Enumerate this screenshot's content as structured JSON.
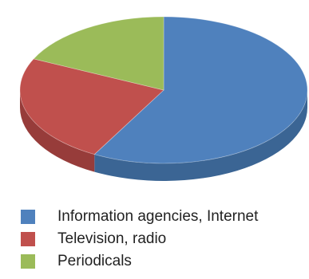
{
  "chart_data": {
    "type": "pie",
    "style": "3d",
    "title": "",
    "categories": [
      "Information agencies, Internet",
      "Television, radio",
      "Periodicals"
    ],
    "values": [
      58,
      24,
      18
    ],
    "colors": [
      "#4f81bd",
      "#c0504d",
      "#9bbb59"
    ],
    "side_colors": [
      "#3b6594",
      "#973c3a",
      "#7a9545"
    ],
    "legend_position": "bottom"
  }
}
